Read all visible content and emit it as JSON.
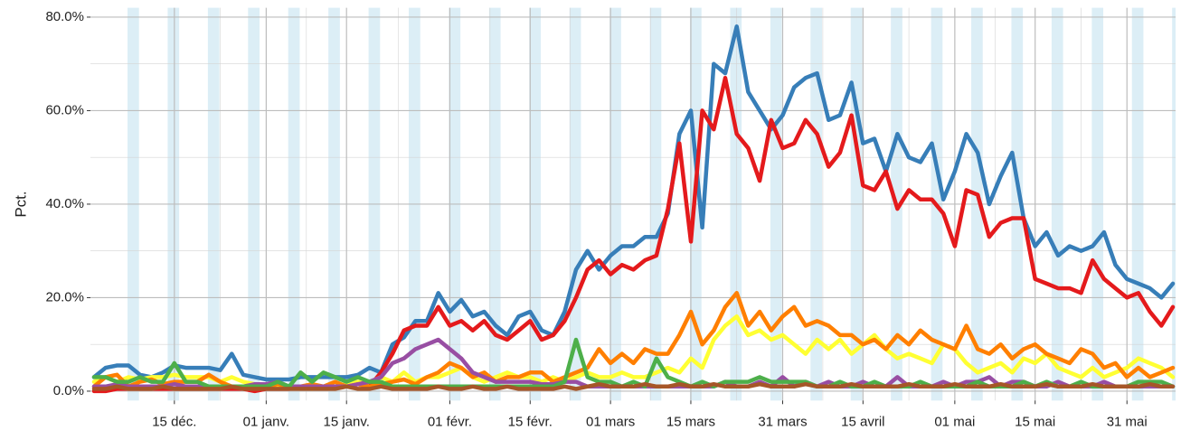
{
  "chart_data": {
    "type": "line",
    "y_label": "Pct.",
    "categories": [
      null,
      null,
      null,
      null,
      null,
      null,
      null,
      "15 déc.",
      null,
      null,
      null,
      null,
      null,
      null,
      null,
      "01 janv.",
      null,
      null,
      null,
      null,
      null,
      null,
      "15 janv.",
      null,
      null,
      null,
      null,
      null,
      null,
      null,
      null,
      "01 févr.",
      null,
      null,
      null,
      null,
      null,
      null,
      "15 févr.",
      null,
      null,
      null,
      null,
      null,
      null,
      "01 mars",
      null,
      null,
      null,
      null,
      null,
      null,
      "15 mars",
      null,
      null,
      null,
      null,
      null,
      null,
      null,
      "31 mars",
      null,
      null,
      null,
      null,
      null,
      null,
      "15 avril",
      null,
      null,
      null,
      null,
      null,
      null,
      null,
      "01 mai",
      null,
      null,
      null,
      null,
      null,
      null,
      "15 mai",
      null,
      null,
      null,
      null,
      null,
      null,
      null,
      "31 mai",
      null,
      null,
      null,
      null
    ],
    "series": [
      {
        "color": "#377eb8",
        "values": [
          3,
          5,
          5.5,
          5.5,
          3.5,
          3,
          4,
          5.5,
          5,
          5,
          5,
          4.5,
          8,
          3.5,
          3,
          2.5,
          2.5,
          2.5,
          3,
          3,
          3,
          3,
          3,
          3.5,
          5,
          4,
          10,
          11.5,
          15,
          15,
          21,
          17,
          19.5,
          16,
          17,
          14,
          12,
          16,
          17,
          13,
          12,
          17,
          26,
          30,
          26,
          29,
          31,
          31,
          33,
          33,
          38,
          55,
          60,
          35,
          70,
          68,
          78,
          64,
          60,
          56,
          59,
          65,
          67,
          68,
          58,
          59,
          66,
          53,
          54,
          47,
          55,
          50,
          49,
          53,
          41,
          47,
          55,
          51,
          40,
          46,
          51,
          37,
          31,
          34,
          29,
          31,
          30,
          31,
          34,
          27,
          24,
          23,
          22,
          20,
          23
        ]
      },
      {
        "color": "#e41a1c",
        "values": [
          0,
          0,
          0.5,
          0.5,
          0.5,
          0.5,
          0.5,
          0.5,
          0.5,
          0.5,
          0.5,
          0.5,
          0.5,
          0.5,
          0,
          0.5,
          0.5,
          0.5,
          1,
          1,
          1,
          1,
          1,
          1.5,
          1,
          4,
          8,
          13,
          14,
          14,
          18,
          14,
          15,
          13,
          15,
          12,
          11,
          13,
          15,
          11,
          12,
          15,
          20,
          26,
          28,
          25,
          27,
          26,
          28,
          29,
          39,
          53,
          32,
          60,
          56,
          67,
          55,
          52,
          45,
          58,
          52,
          53,
          58,
          55,
          48,
          51,
          59,
          44,
          43,
          47,
          39,
          43,
          41,
          41,
          38,
          31,
          43,
          42,
          33,
          36,
          37,
          37,
          24,
          23,
          22,
          22,
          21,
          28,
          24,
          22,
          20,
          21,
          17,
          14,
          18
        ]
      },
      {
        "color": "#ffff33",
        "values": [
          2,
          3,
          2,
          3,
          2.5,
          3,
          3,
          3.5,
          3,
          3,
          3,
          2,
          3,
          2,
          1.5,
          1,
          1,
          1,
          1,
          0.5,
          1,
          1,
          1.5,
          2,
          2,
          3,
          2,
          4,
          2,
          3,
          3,
          4,
          5,
          3,
          2,
          3,
          4,
          3,
          3,
          2,
          3,
          2,
          3,
          4,
          3,
          3,
          4,
          3,
          3,
          4,
          5,
          4,
          7,
          5,
          11,
          14,
          16,
          12,
          13,
          11,
          12,
          10,
          8,
          11,
          9,
          11,
          8,
          10,
          12,
          9,
          7,
          8,
          7,
          6,
          10,
          9,
          6,
          4,
          5,
          6,
          4,
          7,
          6,
          8,
          5,
          4,
          3,
          5,
          3,
          4,
          5,
          7,
          6,
          5,
          3
        ]
      },
      {
        "color": "#ff7f00",
        "values": [
          1,
          3,
          3.5,
          1,
          2,
          2.5,
          1.5,
          2,
          2,
          2,
          3.5,
          2,
          1,
          1,
          1,
          1,
          1.5,
          1,
          1,
          1.5,
          1,
          2,
          1,
          1.5,
          1,
          1.5,
          2,
          2.5,
          1.5,
          3,
          4,
          6,
          5,
          3,
          4,
          2,
          3,
          3,
          4,
          4,
          2,
          3,
          4,
          5,
          9,
          6,
          8,
          6,
          9,
          8,
          8,
          12,
          17,
          10,
          13,
          18,
          21,
          14,
          17,
          13,
          16,
          18,
          14,
          15,
          14,
          12,
          12,
          10,
          11,
          9,
          12,
          10,
          13,
          11,
          10,
          9,
          14,
          9,
          8,
          10,
          7,
          9,
          10,
          8,
          7,
          6,
          9,
          8,
          5,
          6,
          3,
          5,
          3,
          4,
          5
        ]
      },
      {
        "color": "#984ea3",
        "values": [
          1,
          1,
          1.5,
          1,
          1,
          1,
          1,
          1.5,
          1,
          1,
          1,
          1,
          1,
          1,
          1.5,
          1.5,
          2,
          1,
          1,
          1,
          1,
          1,
          1,
          1.5,
          2,
          3,
          6,
          7,
          9,
          10,
          11,
          9,
          7,
          4,
          3,
          2,
          2,
          2,
          2,
          1.5,
          1.5,
          2,
          2,
          1,
          1,
          1,
          1,
          1,
          1,
          1,
          1,
          1,
          1,
          1,
          1,
          2,
          1,
          1,
          2,
          1,
          3,
          1,
          2,
          1,
          2,
          1,
          1,
          2,
          1,
          1,
          3,
          1,
          1,
          1,
          2,
          1,
          2,
          2,
          3,
          1,
          2,
          2,
          1,
          1,
          2,
          1,
          1,
          1,
          2,
          1,
          1,
          1,
          1,
          1,
          1
        ]
      },
      {
        "color": "#4daf4a",
        "values": [
          3,
          3,
          2,
          2,
          3,
          2,
          2,
          6,
          2,
          2,
          1,
          1,
          1,
          1,
          1,
          1,
          2,
          1,
          4,
          2,
          4,
          3,
          2,
          3,
          2,
          2,
          1,
          1,
          1,
          1,
          1,
          1,
          1,
          1,
          1,
          1,
          1,
          1,
          1,
          1,
          1,
          2,
          11,
          3,
          2,
          2,
          1,
          2,
          1,
          7,
          3,
          2,
          1,
          2,
          1,
          2,
          2,
          2,
          3,
          2,
          2,
          2,
          2,
          1,
          1,
          2,
          1,
          1,
          2,
          1,
          1,
          1,
          2,
          1,
          1,
          1,
          1,
          2,
          1,
          1,
          1,
          2,
          1,
          2,
          1,
          1,
          2,
          1,
          1,
          1,
          1,
          2,
          2,
          2,
          1
        ]
      },
      {
        "color": "#a65628",
        "values": [
          0.5,
          0.5,
          1,
          0.5,
          0.5,
          0.5,
          1,
          0.5,
          0.5,
          0.5,
          0.5,
          0.5,
          1,
          0.5,
          0.5,
          0.5,
          0.5,
          0.5,
          0.5,
          0.5,
          0.5,
          0.5,
          1,
          0.5,
          0.5,
          1,
          0.5,
          0.5,
          0.5,
          0.5,
          1,
          0.5,
          0.5,
          1,
          0.5,
          0.5,
          1,
          0.5,
          0.5,
          0.5,
          0.5,
          1,
          0.5,
          1,
          1.5,
          1,
          1,
          1,
          1.5,
          1,
          1,
          1.5,
          1,
          1,
          1.5,
          1,
          1,
          1,
          1.5,
          1,
          1,
          1,
          1.5,
          1,
          1,
          1,
          1.5,
          1,
          1,
          1,
          1,
          1.5,
          1,
          1,
          1,
          1.5,
          1,
          1,
          1,
          1.5,
          1,
          1,
          1,
          1.5,
          1,
          1,
          1,
          1.5,
          1,
          1,
          1,
          1,
          1.5,
          1,
          1
        ]
      }
    ],
    "ylim": [
      -2,
      82
    ],
    "yticks": [
      {
        "value": 0,
        "label": "0.0%"
      },
      {
        "value": 20,
        "label": "20.0%"
      },
      {
        "value": 40,
        "label": "40.0%"
      },
      {
        "value": 60,
        "label": "60.0%"
      },
      {
        "value": 80,
        "label": "80.0%"
      }
    ],
    "minor_yticks": [
      10,
      30,
      50,
      70
    ],
    "grid": true
  }
}
